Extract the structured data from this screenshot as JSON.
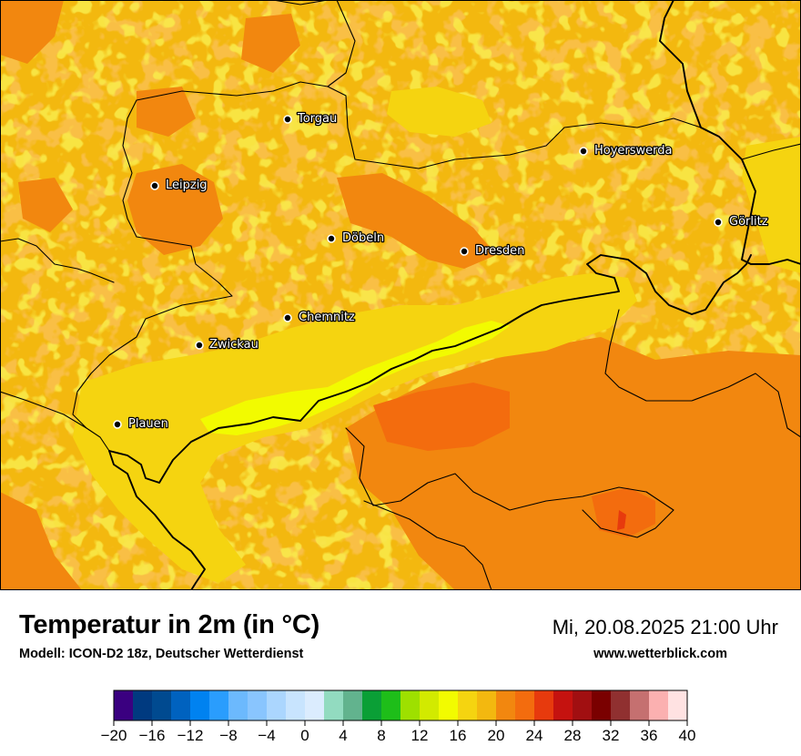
{
  "header": {
    "title": "Temperatur in 2m (in °C)",
    "subtitle": "Modell: ICON-D2 18z, Deutscher Wetterdienst",
    "datetime": "Mi, 20.08.2025 21:00 Uhr",
    "website": "www.wetterblick.com"
  },
  "map": {
    "cities": [
      {
        "name": "Torgau"
      },
      {
        "name": "Hoyerswerda"
      },
      {
        "name": "Leipzig"
      },
      {
        "name": "Görlitz"
      },
      {
        "name": "Döbeln"
      },
      {
        "name": "Dresden"
      },
      {
        "name": "Chemnitz"
      },
      {
        "name": "Zwickau"
      },
      {
        "name": "Plauen"
      }
    ]
  },
  "legend": {
    "unit": "°C",
    "min": -20,
    "max": 40,
    "step": 2,
    "tick_labels": [
      "−20",
      "−16",
      "−12",
      "−8",
      "−4",
      "0",
      "4",
      "8",
      "12",
      "16",
      "20",
      "24",
      "28",
      "32",
      "36",
      "40"
    ],
    "colors": [
      "#3a0080",
      "#003a80",
      "#004a90",
      "#0062bf",
      "#0082f0",
      "#2a9dfd",
      "#6cb9fd",
      "#89c5fe",
      "#abd6fe",
      "#c8e4fe",
      "#dbecfe",
      "#92dbc0",
      "#62b38e",
      "#0a9f36",
      "#1ebe19",
      "#9ee000",
      "#d2ea00",
      "#f2fb00",
      "#f5d410",
      "#f3b80f",
      "#f2870f",
      "#f36c0e",
      "#e73a0d",
      "#c5120f",
      "#a10f11",
      "#7a0000",
      "#903030",
      "#c57070",
      "#fbb0b0",
      "#ffe2e2"
    ]
  }
}
